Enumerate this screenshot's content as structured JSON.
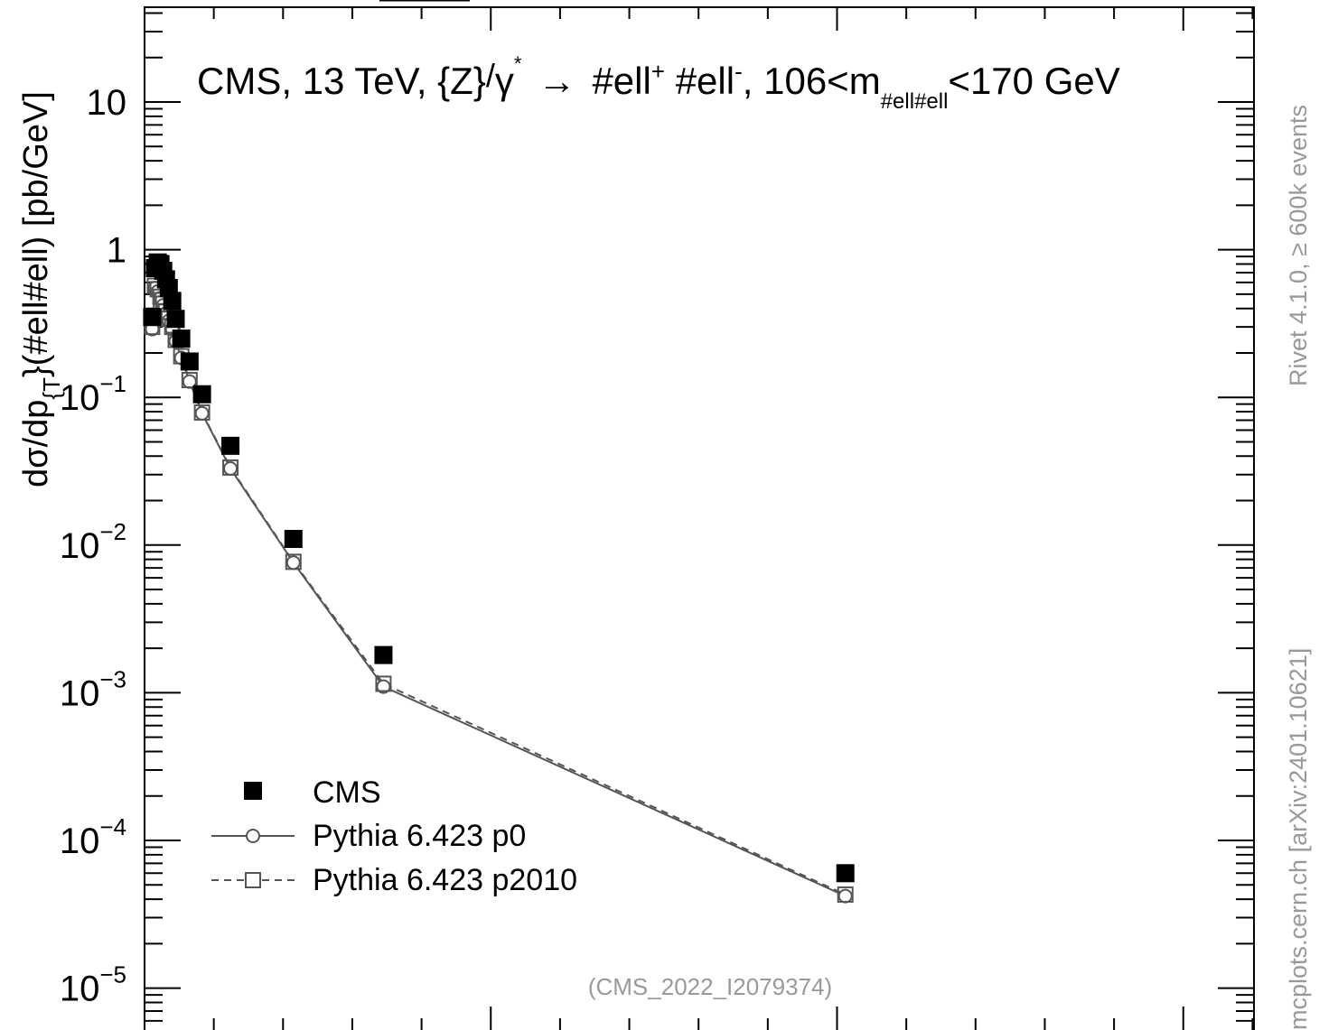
{
  "chart_data": {
    "type": "scatter",
    "title": "CMS, 13 TeV, {Z}/γ* → #ell+ #ell-, 106<m#ell#ell<170 GeV",
    "title_parts": {
      "a": "CMS, 13 TeV, {Z}",
      "b": "/",
      "c": "γ",
      "c_sup": "*",
      "arrow": "→",
      "d": "#ell",
      "d_sup": "+",
      "e": " #ell",
      "e_sup": "-",
      "f": ", 106<m",
      "f_sub": "#ell#ell",
      "g": "<170 GeV"
    },
    "ylabel_parts": {
      "a": "dσ/dp",
      "sub": "{T",
      "b": "}(#ell#ell) [pb/GeV]"
    },
    "y_scale": "log",
    "ylim": [
      1e-05,
      40
    ],
    "xlim": [
      0,
      1000
    ],
    "y_ticks": [
      {
        "value": 10,
        "label": "10",
        "exp": ""
      },
      {
        "value": 1,
        "label": "1",
        "exp": ""
      },
      {
        "value": 0.1,
        "label": "10",
        "exp": "−1"
      },
      {
        "value": 0.01,
        "label": "10",
        "exp": "−2"
      },
      {
        "value": 0.001,
        "label": "10",
        "exp": "−3"
      },
      {
        "value": 0.0001,
        "label": "10",
        "exp": "−4"
      },
      {
        "value": 1e-05,
        "label": "10",
        "exp": "−5"
      }
    ],
    "legend_position": "bottom-left",
    "series": [
      {
        "name": "CMS",
        "marker": "filled-square",
        "color": "#000000",
        "x": [
          11,
          15,
          19,
          23,
          27,
          31,
          35,
          40,
          45,
          53,
          65,
          83,
          124,
          215,
          345,
          1012
        ],
        "y": [
          0.35,
          0.75,
          0.82,
          0.8,
          0.72,
          0.63,
          0.55,
          0.45,
          0.34,
          0.25,
          0.175,
          0.105,
          0.047,
          0.011,
          0.0018,
          6e-05
        ]
      },
      {
        "name": "Pythia 6.423 p0",
        "marker": "open-circle",
        "line": "solid",
        "color": "#555555",
        "x": [
          11,
          15,
          19,
          23,
          27,
          31,
          35,
          40,
          45,
          53,
          65,
          83,
          124,
          215,
          345,
          1012
        ],
        "y": [
          0.29,
          0.55,
          0.52,
          0.47,
          0.42,
          0.37,
          0.33,
          0.29,
          0.24,
          0.185,
          0.128,
          0.078,
          0.033,
          0.0076,
          0.0011,
          4.2e-05
        ]
      },
      {
        "name": "Pythia 6.423 p2010",
        "marker": "open-square",
        "line": "dashed",
        "color": "#555555",
        "x": [
          11,
          15,
          19,
          23,
          27,
          31,
          35,
          40,
          45,
          53,
          65,
          83,
          124,
          215,
          345,
          1012
        ],
        "y": [
          0.3,
          0.57,
          0.54,
          0.48,
          0.43,
          0.38,
          0.34,
          0.3,
          0.245,
          0.19,
          0.131,
          0.079,
          0.0335,
          0.0077,
          0.00115,
          4.3e-05
        ]
      }
    ],
    "annotation": "(CMS_2022_I2079374)",
    "side_text_upper": "Rivet 4.1.0, ≥ 600k events",
    "side_text_lower": "mcplots.cern.ch [arXiv:2401.10621]"
  }
}
